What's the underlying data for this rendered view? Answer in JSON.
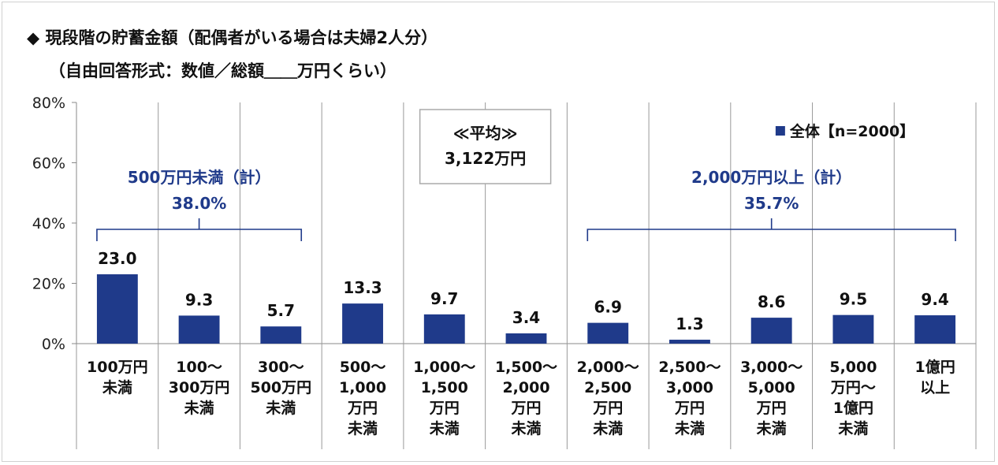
{
  "page": {
    "title_line1": "◆ 現段階の貯蓄金額（配偶者がいる場合は夫婦2人分）",
    "title_line2": "（自由回答形式：数値／総額＿＿万円くらい）"
  },
  "chart_data": {
    "type": "bar",
    "categories": [
      [
        "100万円",
        "未満"
      ],
      [
        "100～",
        "300万円",
        "未満"
      ],
      [
        "300～",
        "500万円",
        "未満"
      ],
      [
        "500～",
        "1,000",
        "万円",
        "未満"
      ],
      [
        "1,000～",
        "1,500",
        "万円",
        "未満"
      ],
      [
        "1,500～",
        "2,000",
        "万円",
        "未満"
      ],
      [
        "2,000～",
        "2,500",
        "万円",
        "未満"
      ],
      [
        "2,500～",
        "3,000",
        "万円",
        "未満"
      ],
      [
        "3,000～",
        "5,000",
        "万円",
        "未満"
      ],
      [
        "5,000",
        "万円～",
        "1億円",
        "未満"
      ],
      [
        "1億円",
        "以上"
      ]
    ],
    "series": [
      {
        "name": "全体【n=2000】",
        "values": [
          23.0,
          9.3,
          5.7,
          13.3,
          9.7,
          3.4,
          6.9,
          1.3,
          8.6,
          9.5,
          9.4
        ]
      }
    ],
    "value_labels": [
      "23.0",
      "9.3",
      "5.7",
      "13.3",
      "9.7",
      "3.4",
      "6.9",
      "1.3",
      "8.6",
      "9.5",
      "9.4"
    ],
    "ylim": [
      0,
      80
    ],
    "yticks": [
      0,
      20,
      40,
      60,
      80
    ],
    "ytick_labels": [
      "0%",
      "20%",
      "40%",
      "60%",
      "80%"
    ],
    "grid": "vertical separators",
    "legend": {
      "label": "全体【n=2000】",
      "placement": "top-right"
    },
    "bar_color": "#1f3a8a",
    "annotation_color": "#1f3a8a",
    "brackets": [
      {
        "from": 0,
        "to": 2,
        "label": "500万円未満（計）",
        "value": "38.0%"
      },
      {
        "from": 6,
        "to": 10,
        "label": "2,000万円以上（計）",
        "value": "35.7%"
      }
    ],
    "average_box": {
      "label": "≪平均≫",
      "value": "3,122万円"
    }
  }
}
